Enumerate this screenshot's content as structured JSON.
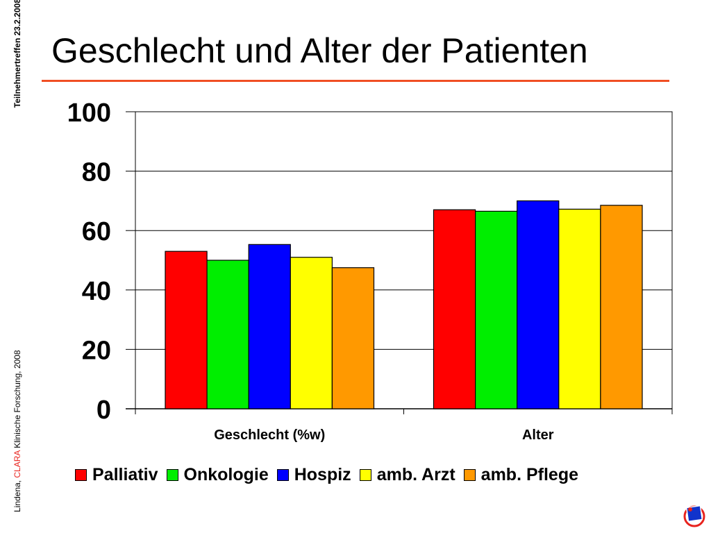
{
  "slide": {
    "title": "Geschlecht und Alter der Patienten",
    "accent_color": "#f04e23",
    "side_note": {
      "author": "Lindena,",
      "project": "CLARA",
      "rest": "Klinische Forschung, 2008",
      "event": "Teilnehmertreffen 23.2.2008",
      "project_color": "#e8231e"
    },
    "logo": "clara-logo-icon"
  },
  "chart_data": {
    "type": "bar",
    "categories": [
      "Geschlecht (%w)",
      "Alter"
    ],
    "series": [
      {
        "name": "Palliativ",
        "color": "#ff0000",
        "values": [
          53,
          67
        ]
      },
      {
        "name": "Onkologie",
        "color": "#00ee00",
        "values": [
          50,
          66.5
        ]
      },
      {
        "name": "Hospiz",
        "color": "#0000ff",
        "values": [
          55.3,
          70
        ]
      },
      {
        "name": "amb. Arzt",
        "color": "#ffff00",
        "values": [
          51,
          67.2
        ]
      },
      {
        "name": "amb. Pflege",
        "color": "#ff9900",
        "values": [
          47.5,
          68.5
        ]
      }
    ],
    "ylim": [
      0,
      100
    ],
    "yticks": [
      0,
      20,
      40,
      60,
      80,
      100
    ],
    "xlabel": "",
    "ylabel": "",
    "grid": true,
    "legend": "bottom"
  }
}
